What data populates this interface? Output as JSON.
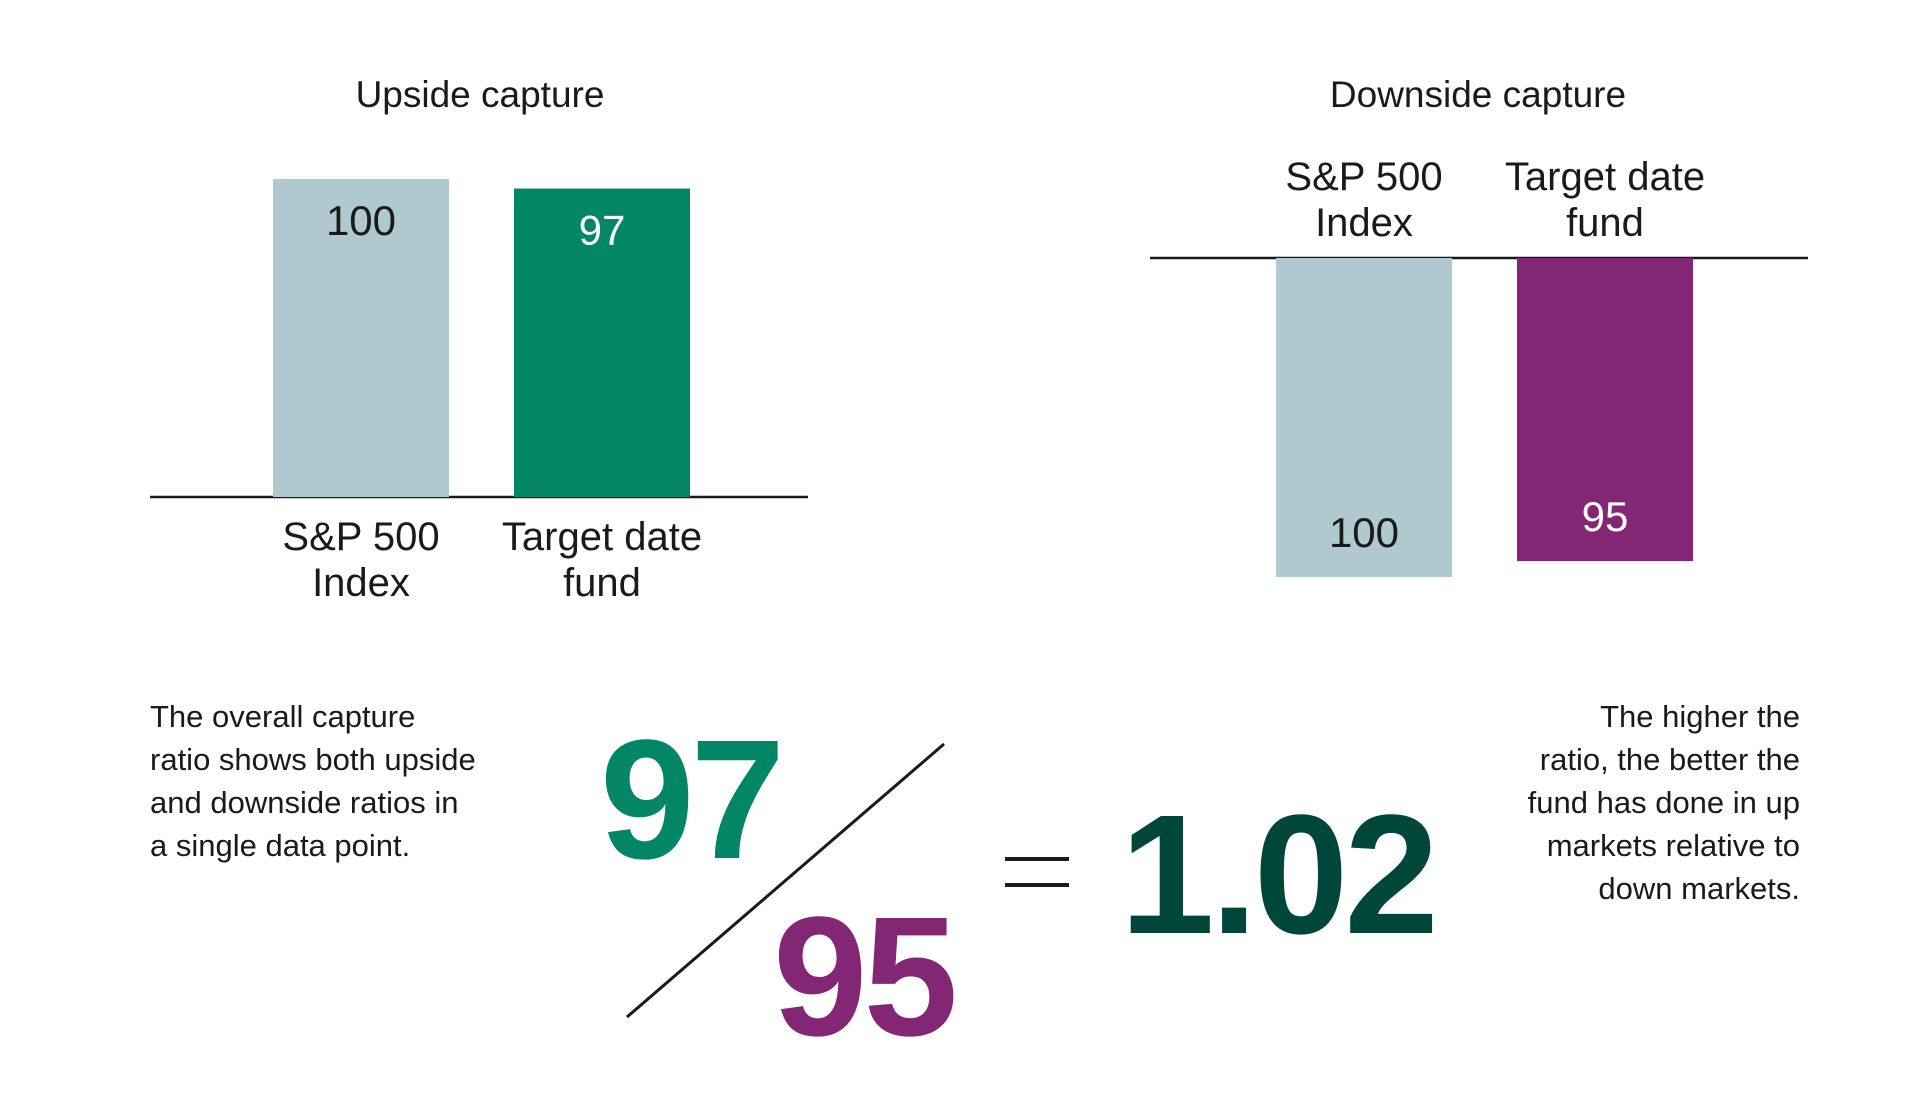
{
  "chart_data": [
    {
      "type": "bar",
      "title": "Upside capture",
      "categories": [
        "S&P 500 Index",
        "Target date fund"
      ],
      "category_lines": [
        [
          "S&P 500",
          "Index"
        ],
        [
          "Target date",
          "fund"
        ]
      ],
      "values": [
        100,
        97
      ],
      "value_labels": [
        "100",
        "97"
      ],
      "colors": [
        "#b0c8cf",
        "#038665"
      ],
      "label_colors": [
        "#1a1a1a",
        "#ffffff"
      ],
      "direction": "up",
      "ylim": [
        0,
        100
      ],
      "grid": false
    },
    {
      "type": "bar",
      "title": "Downside capture",
      "categories": [
        "S&P 500 Index",
        "Target date fund"
      ],
      "category_lines": [
        [
          "S&P 500",
          "Index"
        ],
        [
          "Target date",
          "fund"
        ]
      ],
      "values": [
        100,
        95
      ],
      "value_labels": [
        "100",
        "95"
      ],
      "colors": [
        "#b0c8cf",
        "#832774"
      ],
      "label_colors": [
        "#1a1a1a",
        "#ffffff"
      ],
      "direction": "down",
      "ylim": [
        0,
        100
      ],
      "grid": false
    }
  ],
  "notes": {
    "left": [
      "The overall capture",
      "ratio shows both upside",
      "and downside ratios in",
      "a single data point."
    ],
    "right": [
      "The higher the",
      "ratio, the better the",
      "fund has done in up",
      "markets relative to",
      "down markets."
    ]
  },
  "formula": {
    "numerator": "97",
    "denominator": "95",
    "result": "1.02",
    "numerator_color": "#038665",
    "denominator_color": "#832774",
    "result_color": "#00463a"
  }
}
